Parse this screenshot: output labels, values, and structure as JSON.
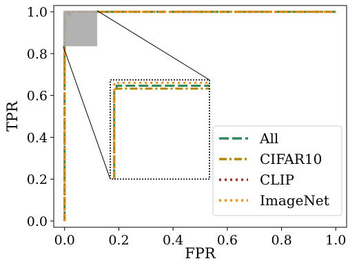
{
  "chart_data": {
    "type": "line",
    "xlabel": "FPR",
    "ylabel": "TPR",
    "xlim": [
      -0.04,
      1.04
    ],
    "ylim": [
      -0.03,
      1.03
    ],
    "xticks": [
      0.0,
      0.2,
      0.4,
      0.6,
      0.8,
      1.0
    ],
    "yticks": [
      0.0,
      0.2,
      0.4,
      0.6,
      0.8,
      1.0
    ],
    "xtick_labels": [
      "0.0",
      "0.2",
      "0.4",
      "0.6",
      "0.8",
      "1.0"
    ],
    "ytick_labels": [
      "0.0",
      "0.2",
      "0.4",
      "0.6",
      "0.8",
      "1.0"
    ],
    "grid": false,
    "legend_position": "lower-right",
    "series": [
      {
        "name": "All",
        "color": "#2e8b57",
        "dash": "dashed",
        "x": [
          0.0,
          0.0,
          0.003,
          0.003,
          0.02,
          0.02,
          1.0
        ],
        "y": [
          0.0,
          0.94,
          0.94,
          0.985,
          0.985,
          1.0,
          1.0
        ]
      },
      {
        "name": "CIFAR10",
        "color": "#b8860b",
        "dash": "dashdot",
        "x": [
          0.0,
          0.0,
          0.002,
          0.002,
          0.012,
          0.012,
          1.0
        ],
        "y": [
          0.0,
          0.92,
          0.92,
          0.99,
          0.99,
          1.0,
          1.0
        ]
      },
      {
        "name": "CLIP",
        "color": "#b22222",
        "dash": "dotted",
        "x": [
          0.0,
          0.0,
          0.001,
          0.001,
          0.008,
          0.008,
          1.0
        ],
        "y": [
          0.0,
          0.95,
          0.95,
          0.995,
          0.995,
          1.0,
          1.0
        ]
      },
      {
        "name": "ImageNet",
        "color": "#ff8c00",
        "dash": "dotted",
        "x": [
          0.0,
          0.0,
          0.002,
          0.002,
          0.012,
          0.012,
          1.0
        ],
        "y": [
          0.0,
          0.97,
          0.97,
          0.998,
          0.998,
          1.0,
          1.0
        ]
      }
    ],
    "inset": {
      "xlim": [
        -0.005,
        0.12
      ],
      "ylim": [
        0.835,
        1.005
      ],
      "series": [
        {
          "name": "All",
          "x": [
            0.0,
            0.0,
            0.003,
            0.003,
            0.12
          ],
          "y": [
            0.835,
            0.985,
            0.985,
            0.995,
            0.995
          ]
        },
        {
          "name": "CIFAR10",
          "x": [
            0.0,
            0.0,
            0.0,
            0.12
          ],
          "y": [
            0.835,
            0.96,
            0.99,
            0.99
          ]
        },
        {
          "name": "CLIP",
          "x": [
            0.0,
            0.0,
            0.0
          ],
          "y": [
            0.835,
            0.95,
            0.96
          ]
        },
        {
          "name": "ImageNet",
          "x": [
            0.0,
            0.0,
            0.0,
            0.12
          ],
          "y": [
            0.835,
            0.96,
            1.0,
            1.0
          ]
        }
      ]
    }
  }
}
